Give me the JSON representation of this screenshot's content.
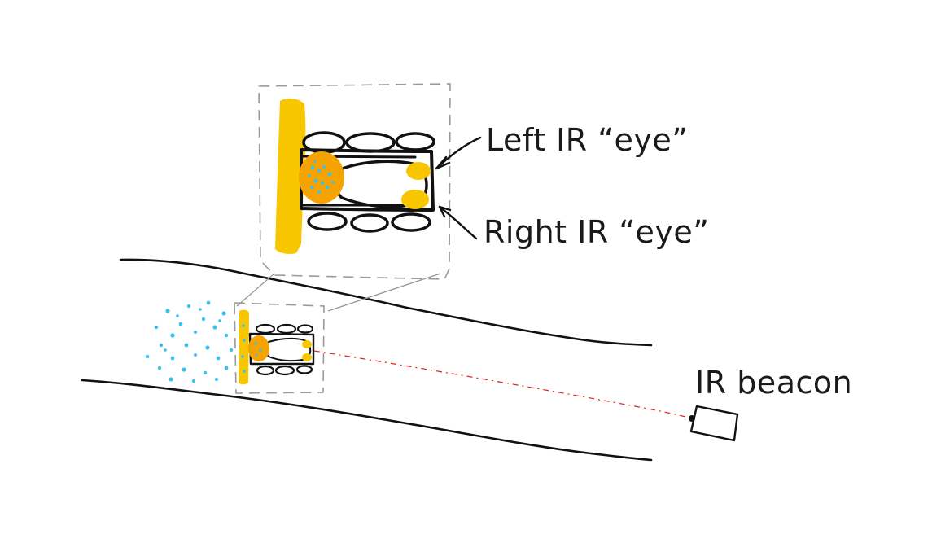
{
  "labels": {
    "left_eye": "Left IR “eye”",
    "right_eye": "Right IR “eye”",
    "beacon": "IR beacon"
  },
  "colors": {
    "ink": "#111111",
    "frame": "#9a9a9a",
    "bumper": "#f7c600",
    "dome": "#f5a300",
    "eye": "#f7c600",
    "spray": "#3cc1ec",
    "ir_ray": "#e02020"
  }
}
